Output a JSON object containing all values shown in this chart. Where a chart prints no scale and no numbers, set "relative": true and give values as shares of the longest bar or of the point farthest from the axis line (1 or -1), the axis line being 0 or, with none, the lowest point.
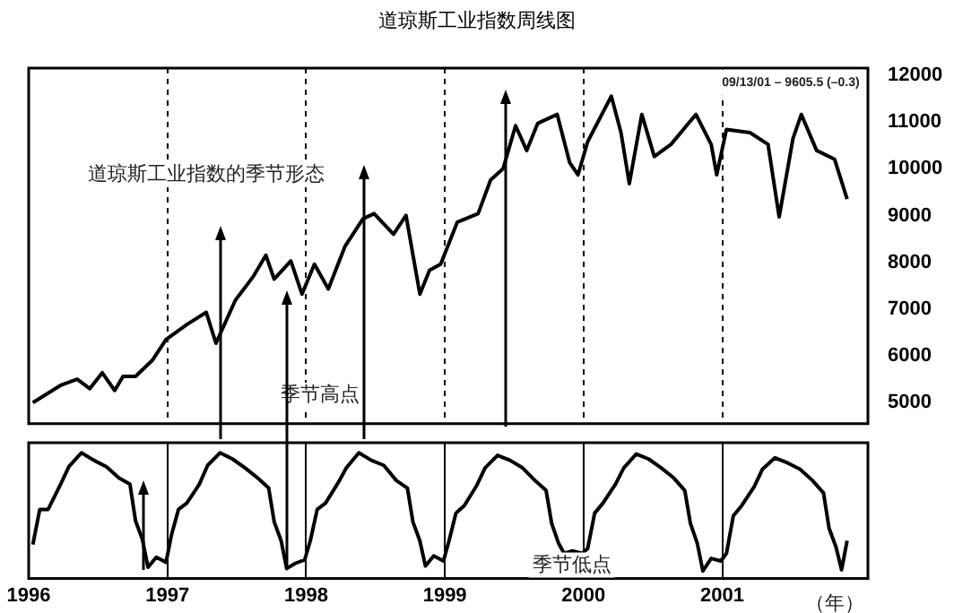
{
  "chart_data": [
    {
      "type": "line",
      "title": "道琼斯工业指数周线图",
      "annotations": [
        "道琼斯工业指数的季节形态",
        "季节高点",
        "09/13/01 – 9605.5 (–0.3)"
      ],
      "x": [
        1996.03,
        1996.23,
        1996.35,
        1996.44,
        1996.53,
        1996.62,
        1996.68,
        1996.77,
        1996.89,
        1996.99,
        1997.14,
        1997.28,
        1997.35,
        1997.49,
        1997.62,
        1997.71,
        1997.77,
        1997.89,
        1997.97,
        1998.06,
        1998.16,
        1998.28,
        1998.41,
        1998.49,
        1998.63,
        1998.72,
        1998.82,
        1998.89,
        1998.97,
        1999.09,
        1999.24,
        1999.33,
        1999.42,
        1999.51,
        1999.59,
        1999.67,
        1999.81,
        1999.9,
        1999.96,
        2000.03,
        2000.2,
        2000.27,
        2000.33,
        2000.42,
        2000.51,
        2000.63,
        2000.81,
        2000.92,
        2000.96,
        2001.03,
        2001.2,
        2001.33,
        2001.41,
        2001.51,
        2001.57,
        2001.68,
        2001.81,
        2001.9
      ],
      "series": [
        {
          "color": "#000000",
          "values": [
            5000,
            5370,
            5500,
            5300,
            5640,
            5260,
            5560,
            5560,
            5900,
            6350,
            6670,
            6930,
            6270,
            7190,
            7700,
            8150,
            7640,
            8030,
            7320,
            7960,
            7430,
            8340,
            8930,
            9040,
            8600,
            9000,
            7320,
            7830,
            7960,
            8860,
            9040,
            9760,
            10000,
            10920,
            10390,
            10970,
            11160,
            10130,
            9870,
            10580,
            11550,
            10770,
            9680,
            11160,
            10260,
            10520,
            11160,
            10520,
            9870,
            10840,
            10770,
            10520,
            8970,
            10650,
            11160,
            10390,
            10200,
            9350
          ]
        }
      ],
      "xlim": [
        1996,
        2002.05
      ],
      "xticks": [
        1996,
        1997,
        1998,
        1999,
        2000,
        2001
      ],
      "ylim": [
        4550,
        12150
      ],
      "yticks": [
        5000,
        6000,
        7000,
        8000,
        9000,
        10000,
        11000,
        12000
      ],
      "grid": "x",
      "tick_labels": "y",
      "marker": "none"
    },
    {
      "type": "line",
      "relative": true,
      "xlabel": "（年）",
      "annotations": [
        "季节低点"
      ],
      "x": [
        1996.03,
        1996.08,
        1996.14,
        1996.23,
        1996.29,
        1996.38,
        1996.47,
        1996.56,
        1996.65,
        1996.73,
        1996.77,
        1996.82,
        1996.86,
        1996.92,
        1996.99,
        1997.03,
        1997.08,
        1997.14,
        1997.23,
        1997.29,
        1997.38,
        1997.47,
        1997.56,
        1997.65,
        1997.73,
        1997.77,
        1997.82,
        1997.86,
        1997.92,
        1997.99,
        1998.03,
        1998.08,
        1998.14,
        1998.23,
        1998.29,
        1998.38,
        1998.47,
        1998.56,
        1998.65,
        1998.73,
        1998.77,
        1998.82,
        1998.86,
        1998.92,
        1998.99,
        1999.03,
        1999.08,
        1999.14,
        1999.23,
        1999.29,
        1999.38,
        1999.47,
        1999.56,
        1999.65,
        1999.73,
        1999.77,
        1999.82,
        1999.86,
        1999.92,
        1999.99,
        2000.03,
        2000.08,
        2000.14,
        2000.23,
        2000.29,
        2000.38,
        2000.47,
        2000.56,
        2000.65,
        2000.73,
        2000.77,
        2000.82,
        2000.86,
        2000.92,
        2000.99,
        2001.03,
        2001.08,
        2001.14,
        2001.23,
        2001.29,
        2001.38,
        2001.47,
        2001.56,
        2001.65,
        2001.73,
        2001.77,
        2001.82,
        2001.86,
        2001.9
      ],
      "series": [
        {
          "color": "#000000",
          "values": [
            0.27,
            0.55,
            0.55,
            0.75,
            0.89,
            1.0,
            0.94,
            0.89,
            0.8,
            0.75,
            0.46,
            0.31,
            0.09,
            0.17,
            0.13,
            0.35,
            0.55,
            0.6,
            0.75,
            0.9,
            1.0,
            0.95,
            0.88,
            0.8,
            0.72,
            0.45,
            0.3,
            0.08,
            0.12,
            0.15,
            0.3,
            0.55,
            0.6,
            0.76,
            0.88,
            1.0,
            0.94,
            0.9,
            0.78,
            0.72,
            0.45,
            0.3,
            0.1,
            0.18,
            0.14,
            0.3,
            0.52,
            0.58,
            0.74,
            0.88,
            0.98,
            0.94,
            0.88,
            0.78,
            0.7,
            0.44,
            0.28,
            0.2,
            0.22,
            0.2,
            0.24,
            0.52,
            0.6,
            0.75,
            0.88,
            0.99,
            0.95,
            0.88,
            0.8,
            0.7,
            0.44,
            0.28,
            0.06,
            0.16,
            0.14,
            0.2,
            0.5,
            0.58,
            0.73,
            0.87,
            0.96,
            0.92,
            0.87,
            0.78,
            0.68,
            0.4,
            0.25,
            0.07,
            0.3
          ]
        }
      ],
      "xlim": [
        1996,
        2002.05
      ],
      "xticks": [
        1996,
        1997,
        1998,
        1999,
        2000,
        2001
      ],
      "grid": "x",
      "tick_labels": "x",
      "marker": "none"
    }
  ]
}
